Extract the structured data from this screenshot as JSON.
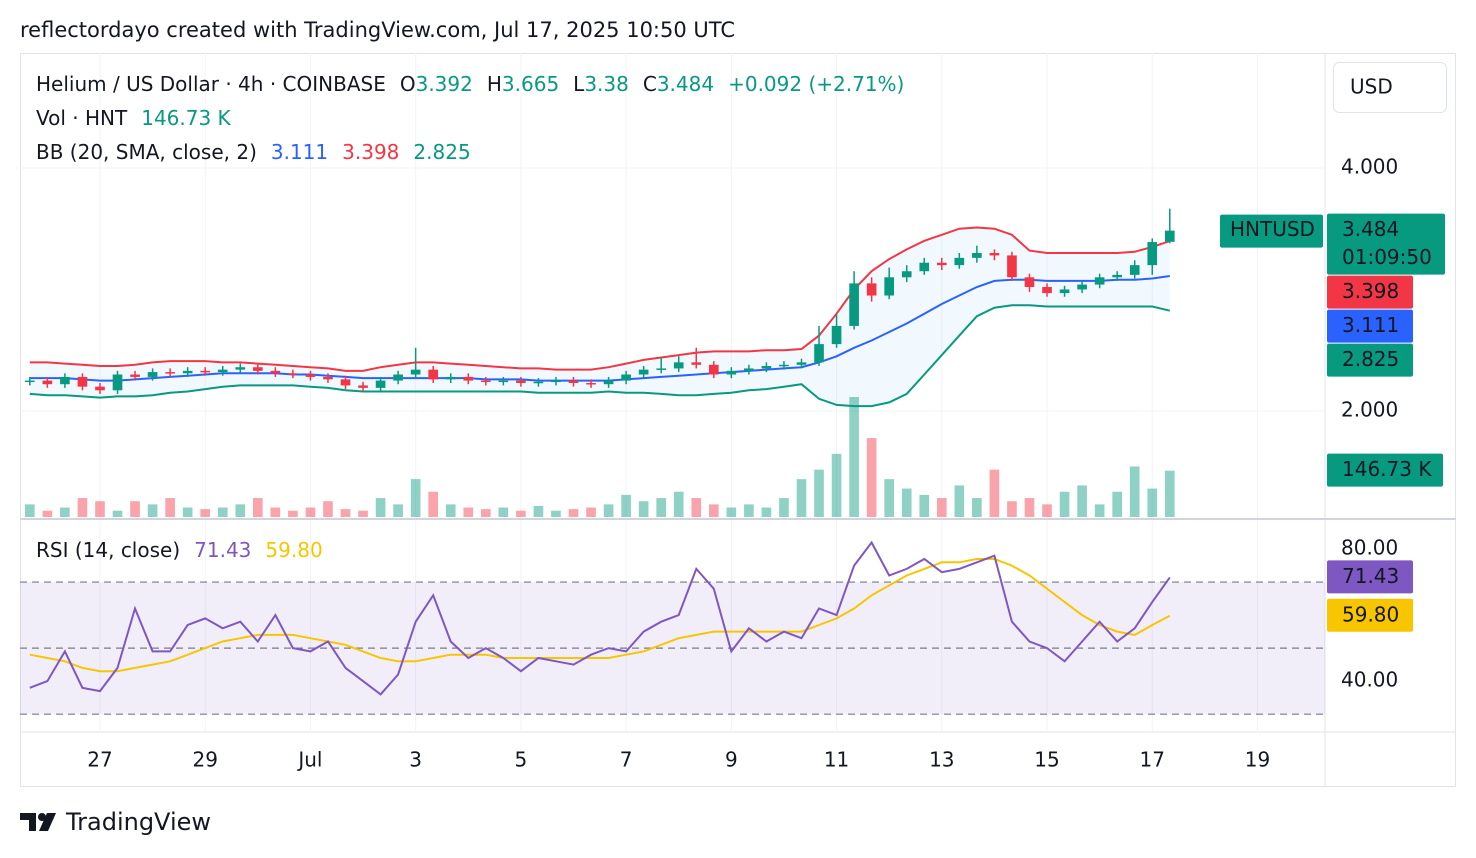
{
  "header": "reflectordayo created with TradingView.com, Jul 17, 2025 10:50 UTC",
  "footer": "TradingView",
  "chart_data": {
    "type": "candlestick",
    "title": "Helium / US Dollar · 4h · COINBASE",
    "ohlc_labels": [
      "O",
      "H",
      "L",
      "C"
    ],
    "change": "+0.092 (+2.71%)",
    "symbol": "HNTUSD",
    "countdown": "01:09:50",
    "currency": "USD",
    "up_color": "#089981",
    "down_color": "#f23645",
    "open": [
      2.24,
      2.25,
      2.22,
      2.28,
      2.2,
      2.17,
      2.3,
      2.28,
      2.32,
      2.31,
      2.33,
      2.32,
      2.34,
      2.36,
      2.33,
      2.31,
      2.3,
      2.28,
      2.26,
      2.21,
      2.19,
      2.25,
      2.3,
      2.34,
      2.26,
      2.28,
      2.25,
      2.24,
      2.25,
      2.23,
      2.24,
      2.25,
      2.23,
      2.22,
      2.25,
      2.3,
      2.34,
      2.35,
      2.4,
      2.38,
      2.3,
      2.33,
      2.35,
      2.37,
      2.38,
      2.4,
      2.55,
      2.7,
      3.05,
      2.95,
      3.1,
      3.15,
      3.22,
      3.2,
      3.26,
      3.3,
      3.28,
      3.1,
      3.02,
      2.97,
      3.0,
      3.04,
      3.1,
      3.12,
      3.2,
      3.392
    ],
    "high": [
      2.28,
      2.28,
      2.31,
      2.31,
      2.23,
      2.33,
      2.33,
      2.35,
      2.35,
      2.36,
      2.36,
      2.37,
      2.39,
      2.39,
      2.36,
      2.34,
      2.33,
      2.31,
      2.29,
      2.24,
      2.28,
      2.33,
      2.52,
      2.37,
      2.31,
      2.31,
      2.28,
      2.28,
      2.28,
      2.27,
      2.28,
      2.28,
      2.26,
      2.28,
      2.33,
      2.37,
      2.44,
      2.45,
      2.52,
      2.41,
      2.36,
      2.38,
      2.4,
      2.41,
      2.43,
      2.7,
      2.8,
      3.15,
      3.1,
      3.18,
      3.2,
      3.26,
      3.26,
      3.3,
      3.36,
      3.33,
      3.31,
      3.13,
      3.05,
      3.03,
      3.07,
      3.13,
      3.15,
      3.24,
      3.42,
      3.665
    ],
    "low": [
      2.21,
      2.19,
      2.19,
      2.17,
      2.14,
      2.14,
      2.25,
      2.25,
      2.28,
      2.28,
      2.29,
      2.29,
      2.31,
      2.3,
      2.28,
      2.27,
      2.25,
      2.23,
      2.18,
      2.16,
      2.16,
      2.22,
      2.27,
      2.23,
      2.23,
      2.22,
      2.21,
      2.21,
      2.2,
      2.2,
      2.21,
      2.2,
      2.19,
      2.19,
      2.22,
      2.27,
      2.31,
      2.32,
      2.35,
      2.27,
      2.27,
      2.3,
      2.32,
      2.34,
      2.35,
      2.37,
      2.52,
      2.67,
      2.9,
      2.92,
      3.06,
      3.12,
      3.16,
      3.17,
      3.22,
      3.24,
      3.07,
      2.98,
      2.94,
      2.94,
      2.97,
      3.01,
      3.07,
      3.09,
      3.12,
      3.38
    ],
    "close": [
      2.25,
      2.22,
      2.28,
      2.2,
      2.17,
      2.3,
      2.28,
      2.32,
      2.31,
      2.33,
      2.32,
      2.34,
      2.36,
      2.33,
      2.31,
      2.3,
      2.28,
      2.26,
      2.21,
      2.19,
      2.25,
      2.3,
      2.34,
      2.26,
      2.28,
      2.25,
      2.24,
      2.25,
      2.23,
      2.24,
      2.25,
      2.23,
      2.22,
      2.25,
      2.3,
      2.34,
      2.35,
      2.4,
      2.38,
      2.3,
      2.33,
      2.35,
      2.37,
      2.38,
      2.4,
      2.55,
      2.7,
      3.05,
      2.95,
      3.1,
      3.15,
      3.22,
      3.2,
      3.26,
      3.3,
      3.28,
      3.1,
      3.02,
      2.97,
      3.0,
      3.04,
      3.1,
      3.12,
      3.2,
      3.39,
      3.484
    ],
    "xlim": [
      -0.56,
      73.85
    ],
    "xticks": [
      {
        "value": 4,
        "label": "27"
      },
      {
        "value": 10,
        "label": "29"
      },
      {
        "value": 16,
        "label": "Jul"
      },
      {
        "value": 22,
        "label": "3"
      },
      {
        "value": 28,
        "label": "5"
      },
      {
        "value": 34,
        "label": "7"
      },
      {
        "value": 40,
        "label": "9"
      },
      {
        "value": 46,
        "label": "11"
      },
      {
        "value": 52,
        "label": "13"
      },
      {
        "value": 58,
        "label": "15"
      },
      {
        "value": 64,
        "label": "17"
      },
      {
        "value": 70,
        "label": "19"
      }
    ],
    "ylim": [
      1.119,
      4.946
    ],
    "yticks": [
      {
        "value": 2,
        "label": "2.000"
      },
      {
        "value": 4,
        "label": "4.000"
      }
    ],
    "grid": true,
    "volume": {
      "name": "Vol · HNT",
      "values": [
        40000,
        20000,
        30000,
        60000,
        50000,
        20000,
        50000,
        40000,
        60000,
        30000,
        25000,
        30000,
        40000,
        60000,
        30000,
        20000,
        30000,
        50000,
        25000,
        20000,
        60000,
        40000,
        120000,
        80000,
        40000,
        30000,
        25000,
        30000,
        20000,
        35000,
        20000,
        25000,
        30000,
        40000,
        70000,
        50000,
        60000,
        80000,
        60000,
        40000,
        30000,
        40000,
        30000,
        60000,
        120000,
        150000,
        200000,
        380000,
        250000,
        120000,
        90000,
        70000,
        60000,
        100000,
        60000,
        150000,
        50000,
        60000,
        40000,
        80000,
        100000,
        40000,
        80000,
        160000,
        90000,
        146730
      ],
      "last_label": "146.73 K",
      "ylim": [
        0,
        380000
      ]
    },
    "bollinger": {
      "name": "BB (20, SMA, close, 2)",
      "basis": {
        "color": "#2962ff",
        "values": [
          2.27,
          2.27,
          2.27,
          2.26,
          2.25,
          2.25,
          2.26,
          2.27,
          2.28,
          2.29,
          2.3,
          2.31,
          2.31,
          2.31,
          2.31,
          2.3,
          2.3,
          2.29,
          2.28,
          2.27,
          2.27,
          2.27,
          2.27,
          2.27,
          2.27,
          2.27,
          2.26,
          2.26,
          2.26,
          2.25,
          2.25,
          2.25,
          2.25,
          2.25,
          2.26,
          2.27,
          2.28,
          2.29,
          2.3,
          2.31,
          2.32,
          2.33,
          2.34,
          2.35,
          2.36,
          2.4,
          2.45,
          2.52,
          2.58,
          2.65,
          2.72,
          2.8,
          2.88,
          2.95,
          3.02,
          3.07,
          3.08,
          3.08,
          3.07,
          3.07,
          3.07,
          3.07,
          3.08,
          3.08,
          3.09,
          3.111
        ]
      },
      "upper": {
        "color": "#f23645",
        "values": [
          2.4,
          2.4,
          2.39,
          2.38,
          2.37,
          2.37,
          2.38,
          2.4,
          2.41,
          2.41,
          2.41,
          2.4,
          2.4,
          2.39,
          2.38,
          2.37,
          2.36,
          2.35,
          2.33,
          2.33,
          2.36,
          2.38,
          2.4,
          2.4,
          2.39,
          2.38,
          2.37,
          2.36,
          2.35,
          2.35,
          2.34,
          2.34,
          2.34,
          2.36,
          2.39,
          2.42,
          2.44,
          2.46,
          2.48,
          2.49,
          2.49,
          2.49,
          2.5,
          2.5,
          2.51,
          2.62,
          2.8,
          3.0,
          3.15,
          3.25,
          3.33,
          3.4,
          3.45,
          3.5,
          3.51,
          3.5,
          3.45,
          3.32,
          3.3,
          3.3,
          3.3,
          3.3,
          3.3,
          3.31,
          3.35,
          3.398
        ]
      },
      "lower": {
        "color": "#089981",
        "values": [
          2.14,
          2.13,
          2.13,
          2.12,
          2.11,
          2.12,
          2.12,
          2.13,
          2.15,
          2.16,
          2.18,
          2.2,
          2.21,
          2.21,
          2.21,
          2.21,
          2.2,
          2.19,
          2.17,
          2.16,
          2.16,
          2.16,
          2.16,
          2.16,
          2.16,
          2.16,
          2.16,
          2.16,
          2.16,
          2.15,
          2.15,
          2.15,
          2.15,
          2.16,
          2.15,
          2.15,
          2.14,
          2.13,
          2.13,
          2.14,
          2.15,
          2.17,
          2.18,
          2.2,
          2.22,
          2.1,
          2.05,
          2.04,
          2.04,
          2.07,
          2.14,
          2.3,
          2.46,
          2.62,
          2.78,
          2.85,
          2.87,
          2.87,
          2.86,
          2.86,
          2.86,
          2.86,
          2.86,
          2.86,
          2.86,
          2.825
        ]
      }
    },
    "rsi": {
      "name": "RSI (14, close)",
      "color": "#7e57c2",
      "values": [
        38,
        40,
        49,
        38,
        37,
        44,
        62,
        49,
        49,
        57,
        59,
        56,
        58,
        52,
        60,
        50,
        49,
        52,
        44,
        40,
        36,
        42,
        58,
        66,
        52,
        47,
        50,
        47,
        43,
        47,
        46,
        45,
        48,
        50,
        49,
        55,
        58,
        60,
        74,
        68,
        49,
        56,
        52,
        55,
        53,
        62,
        60,
        75,
        82,
        72,
        74,
        77,
        73,
        74,
        76,
        78,
        58,
        52,
        50,
        46,
        52,
        58,
        52,
        56,
        64,
        71.43
      ],
      "ma": {
        "color": "#f7c600",
        "last_label": "59.80",
        "values": [
          48,
          47,
          46,
          44,
          43,
          43,
          44,
          45,
          46,
          48,
          50,
          52,
          53,
          54,
          54,
          54,
          53,
          52,
          51,
          49,
          47,
          46,
          46,
          47,
          48,
          48,
          48,
          47,
          47,
          47,
          47,
          47,
          47,
          47,
          48,
          49,
          51,
          53,
          54,
          55,
          55,
          55,
          55,
          55,
          55,
          57,
          59,
          62,
          66,
          69,
          72,
          74,
          76,
          76,
          77,
          77,
          75,
          72,
          68,
          64,
          60,
          57,
          55,
          54,
          57,
          59.8
        ]
      },
      "ylim": [
        24.6,
        88.8
      ],
      "yticks": [
        {
          "value": 40,
          "label": "40.00"
        },
        {
          "value": 80,
          "label": "80.00"
        }
      ],
      "levels": [
        70,
        50,
        30
      ]
    }
  }
}
